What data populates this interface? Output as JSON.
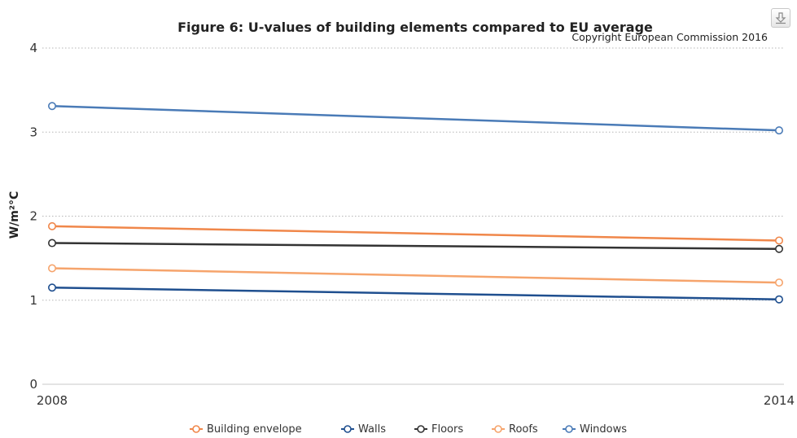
{
  "chart_data": {
    "type": "line",
    "title": "Figure 6: U-values of building elements compared to EU average",
    "subtitle": "Copyright European Commission 2016",
    "xlabel": "",
    "ylabel": "W/m²°C",
    "x": [
      "2008",
      "2014"
    ],
    "ylim": [
      0,
      4
    ],
    "yticks": [
      "0",
      "1",
      "2",
      "3",
      "4"
    ],
    "grid": true,
    "legend_position": "bottom",
    "series": [
      {
        "name": "Building envelope",
        "color": "#f0874a",
        "values": [
          1.88,
          1.71
        ]
      },
      {
        "name": "Walls",
        "color": "#1f4f8f",
        "values": [
          1.15,
          1.01
        ]
      },
      {
        "name": "Floors",
        "color": "#333333",
        "values": [
          1.68,
          1.61
        ]
      },
      {
        "name": "Roofs",
        "color": "#f6a46c",
        "values": [
          1.38,
          1.21
        ]
      },
      {
        "name": "Windows",
        "color": "#4a7bb7",
        "values": [
          3.31,
          3.02
        ]
      }
    ]
  },
  "icons": {
    "export": "download-icon"
  }
}
